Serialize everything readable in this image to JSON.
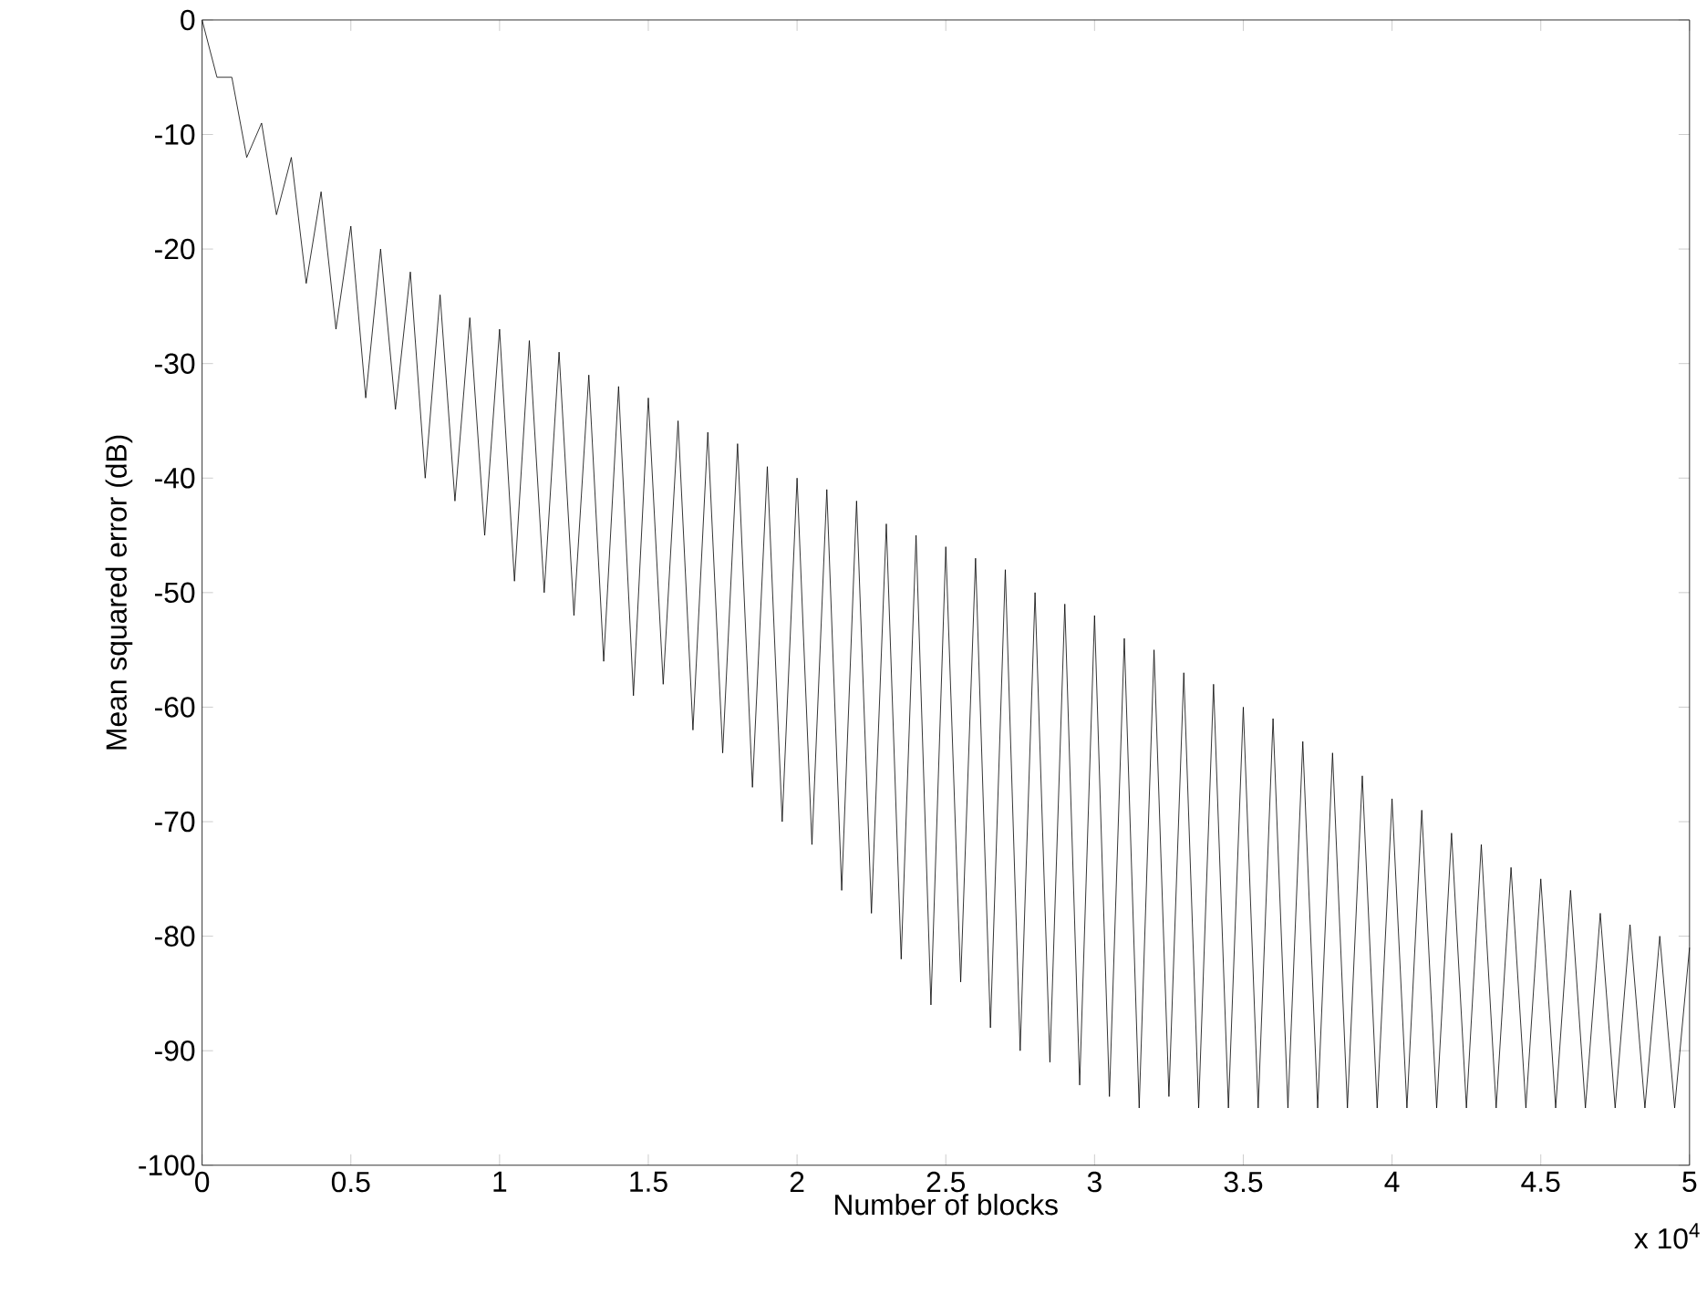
{
  "chart_data": {
    "type": "line",
    "xlabel": "Number of blocks",
    "ylabel": "Mean squared error (dB)",
    "annotations": [
      "x 10$^{4}$"
    ],
    "xlim": [
      0,
      5
    ],
    "ylim": [
      -100,
      0
    ],
    "xticks": [
      0,
      0.5,
      1,
      1.5,
      2,
      2.5,
      3,
      3.5,
      4,
      4.5,
      5
    ],
    "yticks": [
      -100,
      -90,
      -80,
      -70,
      -60,
      -50,
      -40,
      -30,
      -20,
      -10,
      0
    ],
    "x": [
      0,
      0.05,
      0.1,
      0.15,
      0.2,
      0.25,
      0.3,
      0.35,
      0.4,
      0.45,
      0.5,
      0.55,
      0.6,
      0.65,
      0.7,
      0.75,
      0.8,
      0.85,
      0.9,
      0.95,
      1,
      1.05,
      1.1,
      1.15,
      1.2,
      1.25,
      1.3,
      1.35,
      1.4,
      1.45,
      1.5,
      1.55,
      1.6,
      1.65,
      1.7,
      1.75,
      1.8,
      1.85,
      1.9,
      1.95,
      2,
      2.05,
      2.1,
      2.15,
      2.2,
      2.25,
      2.3,
      2.35,
      2.4,
      2.45,
      2.5,
      2.55,
      2.6,
      2.65,
      2.7,
      2.75,
      2.8,
      2.85,
      2.9,
      2.95,
      3,
      3.05,
      3.1,
      3.15,
      3.2,
      3.25,
      3.3,
      3.35,
      3.4,
      3.45,
      3.5,
      3.55,
      3.6,
      3.65,
      3.7,
      3.75,
      3.8,
      3.85,
      3.9,
      3.95,
      4,
      4.05,
      4.1,
      4.15,
      4.2,
      4.25,
      4.3,
      4.35,
      4.4,
      4.45,
      4.5,
      4.55,
      4.6,
      4.65,
      4.7,
      4.75,
      4.8,
      4.85,
      4.9,
      4.95,
      5
    ],
    "series": [
      {
        "color": "#000000",
        "values": [
          0,
          -5,
          -5,
          -12,
          -9,
          -17,
          -12,
          -23,
          -15,
          -27,
          -18,
          -33,
          -20,
          -34,
          -22,
          -40,
          -24,
          -42,
          -26,
          -45,
          -27,
          -49,
          -28,
          -50,
          -29,
          -52,
          -31,
          -56,
          -32,
          -59,
          -33,
          -58,
          -35,
          -62,
          -36,
          -64,
          -37,
          -67,
          -39,
          -70,
          -40,
          -72,
          -41,
          -76,
          -42,
          -78,
          -44,
          -82,
          -45,
          -86,
          -46,
          -84,
          -47,
          -88,
          -48,
          -90,
          -50,
          -91,
          -51,
          -93,
          -52,
          -94,
          -54,
          -95,
          -55,
          -94,
          -57,
          -95,
          -58,
          -95,
          -60,
          -95,
          -61,
          -95,
          -63,
          -95,
          -64,
          -95,
          -66,
          -95,
          -68,
          -95,
          -69,
          -95,
          -71,
          -95,
          -72,
          -95,
          -74,
          -95,
          -75,
          -95,
          -76,
          -95,
          -78,
          -95,
          -79,
          -95,
          -80,
          -95,
          -81
        ]
      }
    ]
  }
}
